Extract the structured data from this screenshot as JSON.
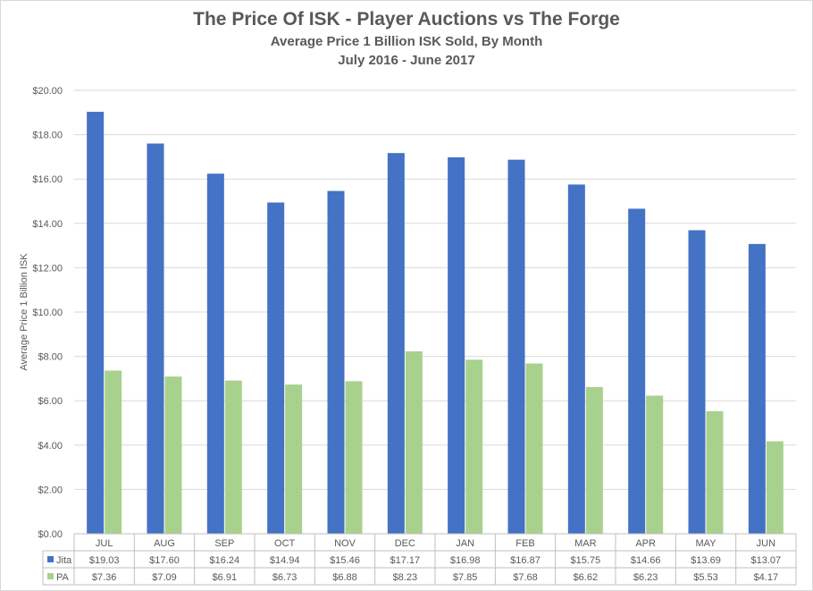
{
  "chart_data": {
    "type": "bar",
    "title": "The Price Of ISK - Player Auctions vs The Forge",
    "subtitle": "Average Price 1 Billion ISK Sold, By Month",
    "subtitle2": "July 2016 - June 2017",
    "xlabel": "",
    "ylabel": "Average Price 1 Billion ISK",
    "ylim": [
      0,
      20
    ],
    "yticks": [
      0,
      2,
      4,
      6,
      8,
      10,
      12,
      14,
      16,
      18,
      20
    ],
    "ytick_labels": [
      "$0.00",
      "$2.00",
      "$4.00",
      "$6.00",
      "$8.00",
      "$10.00",
      "$12.00",
      "$14.00",
      "$16.00",
      "$18.00",
      "$20.00"
    ],
    "grid": true,
    "legend": "data-table",
    "categories": [
      "JUL",
      "AUG",
      "SEP",
      "OCT",
      "NOV",
      "DEC",
      "JAN",
      "FEB",
      "MAR",
      "APR",
      "MAY",
      "JUN"
    ],
    "series": [
      {
        "name": "Jita",
        "color": "#4472c4",
        "values": [
          19.03,
          17.6,
          16.24,
          14.94,
          15.46,
          17.17,
          16.98,
          16.87,
          15.75,
          14.66,
          13.69,
          13.07
        ],
        "labels": [
          "$19.03",
          "$17.60",
          "$16.24",
          "$14.94",
          "$15.46",
          "$17.17",
          "$16.98",
          "$16.87",
          "$15.75",
          "$14.66",
          "$13.69",
          "$13.07"
        ]
      },
      {
        "name": "PA",
        "color": "#a9d18e",
        "values": [
          7.36,
          7.09,
          6.91,
          6.73,
          6.88,
          8.23,
          7.85,
          7.68,
          6.62,
          6.23,
          5.53,
          4.17
        ],
        "labels": [
          "$7.36",
          "$7.09",
          "$6.91",
          "$6.73",
          "$6.88",
          "$8.23",
          "$7.85",
          "$7.68",
          "$6.62",
          "$6.23",
          "$5.53",
          "$4.17"
        ]
      }
    ]
  }
}
